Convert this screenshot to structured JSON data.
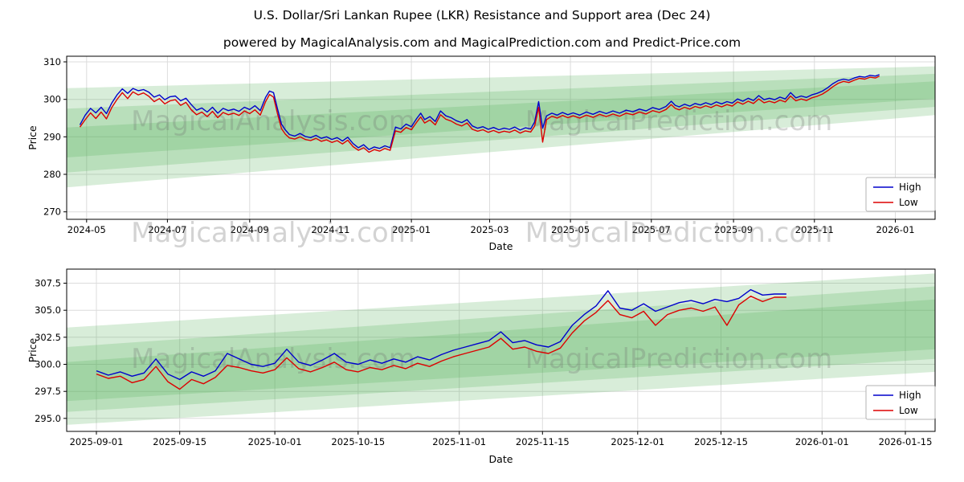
{
  "page": {
    "title": "U.S. Dollar/Sri Lankan Rupee (LKR) Resistance and Support area (Dec 24)",
    "subtitle": "powered by MagicalAnalysis.com and MagicalPrediction.com and Predict-Price.com"
  },
  "watermarks": [
    "MagicalAnalysis.com",
    "MagicalPrediction.com"
  ],
  "colors": {
    "high": "#0000cc",
    "low": "#dd0000",
    "band": "#4caf50",
    "grid": "#dcdcdc"
  },
  "chart_data": [
    {
      "type": "line",
      "title": "",
      "xlabel": "Date",
      "ylabel": "Price",
      "x_unit": "days since 2024-04-26",
      "xlim": [
        -10,
        645
      ],
      "ylim": [
        268,
        311.5
      ],
      "grid": true,
      "legend_position": "lower right",
      "xticks": [
        5,
        66,
        128,
        189,
        250,
        309,
        370,
        431,
        493,
        554,
        615
      ],
      "xticklabels": [
        "2024-05",
        "2024-07",
        "2024-09",
        "2024-11",
        "2025-01",
        "2025-03",
        "2025-05",
        "2025-07",
        "2025-09",
        "2025-11",
        "2026-01"
      ],
      "yticks": [
        270,
        280,
        290,
        300,
        310
      ],
      "yticklabels": [
        "270",
        "280",
        "290",
        "300",
        "310"
      ],
      "band_color": "#4caf50",
      "band_alpha": 0.22,
      "bands": [
        {
          "x": [
            -10,
            645
          ],
          "lower": [
            276.5,
            295.8
          ],
          "upper": [
            303.0,
            308.8
          ]
        },
        {
          "x": [
            -10,
            645
          ],
          "lower": [
            280.5,
            298.0
          ],
          "upper": [
            297.5,
            306.8
          ]
        },
        {
          "x": [
            -10,
            645
          ],
          "lower": [
            284.5,
            300.2
          ],
          "upper": [
            292.5,
            304.8
          ]
        }
      ],
      "x": [
        0,
        4,
        8,
        12,
        16,
        20,
        24,
        28,
        32,
        36,
        40,
        44,
        48,
        52,
        56,
        60,
        64,
        68,
        72,
        76,
        80,
        84,
        88,
        92,
        96,
        100,
        104,
        108,
        112,
        116,
        120,
        124,
        128,
        132,
        136,
        140,
        143,
        146,
        149,
        152,
        155,
        158,
        162,
        166,
        170,
        174,
        178,
        182,
        186,
        190,
        194,
        198,
        202,
        206,
        210,
        214,
        218,
        222,
        226,
        230,
        234,
        238,
        242,
        246,
        250,
        254,
        257,
        260,
        264,
        268,
        272,
        276,
        280,
        284,
        288,
        292,
        296,
        300,
        304,
        308,
        312,
        316,
        320,
        324,
        328,
        332,
        336,
        340,
        343,
        346,
        349,
        352,
        356,
        360,
        364,
        368,
        372,
        377,
        382,
        387,
        392,
        397,
        402,
        407,
        412,
        417,
        422,
        427,
        432,
        437,
        442,
        446,
        449,
        452,
        456,
        460,
        464,
        468,
        472,
        476,
        480,
        484,
        488,
        492,
        496,
        500,
        504,
        508,
        512,
        516,
        520,
        524,
        528,
        532,
        536,
        540,
        544,
        548,
        552,
        556,
        560,
        564,
        568,
        572,
        576,
        580,
        584,
        588,
        592,
        596,
        600,
        603
      ],
      "series": [
        {
          "name": "High",
          "color": "#0000cc",
          "values": [
            293.2,
            295.8,
            297.6,
            296.4,
            297.9,
            296.2,
            299.0,
            301.2,
            302.8,
            301.6,
            302.9,
            302.3,
            302.6,
            301.9,
            300.6,
            301.2,
            299.9,
            300.7,
            300.9,
            299.6,
            300.3,
            298.6,
            297.1,
            297.7,
            296.6,
            297.9,
            296.3,
            297.6,
            297.0,
            297.4,
            296.8,
            297.9,
            297.3,
            298.3,
            297.0,
            300.5,
            302.2,
            301.8,
            297.5,
            293.4,
            291.8,
            290.6,
            290.2,
            290.9,
            290.1,
            289.8,
            290.4,
            289.6,
            290.0,
            289.3,
            289.8,
            288.9,
            289.9,
            288.2,
            287.1,
            287.9,
            286.6,
            287.3,
            286.9,
            287.6,
            287.1,
            292.6,
            292.1,
            293.4,
            292.7,
            294.9,
            296.3,
            294.6,
            295.4,
            294.1,
            296.9,
            295.6,
            295.1,
            294.3,
            293.8,
            294.6,
            292.9,
            292.3,
            292.7,
            292.0,
            292.5,
            291.9,
            292.3,
            292.0,
            292.6,
            291.8,
            292.4,
            292.1,
            294.0,
            299.4,
            292.3,
            295.6,
            296.3,
            295.8,
            296.5,
            295.9,
            296.4,
            295.8,
            296.6,
            296.0,
            296.8,
            296.2,
            296.9,
            296.3,
            297.1,
            296.7,
            297.4,
            296.9,
            297.8,
            297.3,
            298.1,
            299.5,
            298.4,
            298.0,
            298.7,
            298.2,
            298.9,
            298.5,
            299.1,
            298.6,
            299.3,
            298.8,
            299.4,
            299.0,
            300.1,
            299.5,
            300.3,
            299.7,
            301.0,
            299.9,
            300.3,
            299.9,
            300.6,
            300.1,
            301.8,
            300.4,
            300.9,
            300.5,
            301.2,
            301.6,
            302.2,
            303.1,
            304.2,
            305.0,
            305.4,
            305.1,
            305.7,
            306.1,
            305.9,
            306.4,
            306.2,
            306.6
          ]
        },
        {
          "name": "Low",
          "color": "#dd0000",
          "values": [
            292.6,
            294.6,
            296.4,
            294.9,
            296.6,
            294.8,
            297.8,
            300.0,
            301.8,
            300.2,
            302.0,
            301.2,
            301.7,
            300.8,
            299.4,
            300.2,
            298.8,
            299.6,
            299.9,
            298.4,
            299.2,
            297.2,
            295.9,
            296.6,
            295.4,
            296.8,
            295.1,
            296.5,
            295.9,
            296.3,
            295.7,
            296.9,
            296.2,
            297.2,
            295.8,
            299.4,
            301.3,
            300.6,
            296.2,
            292.2,
            290.7,
            289.7,
            289.4,
            290.0,
            289.3,
            289.0,
            289.6,
            288.8,
            289.2,
            288.5,
            289.0,
            288.1,
            289.1,
            287.4,
            286.4,
            287.1,
            285.9,
            286.6,
            286.2,
            286.9,
            286.4,
            291.6,
            291.2,
            292.5,
            291.9,
            293.9,
            295.3,
            293.7,
            294.5,
            293.2,
            295.9,
            294.7,
            294.2,
            293.4,
            292.9,
            293.7,
            292.0,
            291.5,
            291.9,
            291.2,
            291.7,
            291.1,
            291.5,
            291.2,
            291.8,
            291.0,
            291.6,
            291.3,
            292.9,
            297.9,
            288.6,
            294.6,
            295.5,
            295.0,
            295.7,
            295.1,
            295.6,
            295.0,
            295.8,
            295.2,
            296.0,
            295.4,
            296.1,
            295.5,
            296.3,
            295.9,
            296.6,
            296.1,
            297.0,
            296.5,
            297.3,
            298.6,
            297.6,
            297.2,
            297.9,
            297.4,
            298.1,
            297.7,
            298.3,
            297.8,
            298.5,
            298.0,
            298.6,
            298.2,
            299.3,
            298.7,
            299.5,
            298.9,
            300.1,
            299.1,
            299.5,
            299.1,
            299.8,
            299.3,
            300.9,
            299.6,
            300.1,
            299.7,
            300.4,
            300.8,
            301.4,
            302.3,
            303.4,
            304.3,
            304.8,
            304.5,
            305.1,
            305.6,
            305.4,
            305.9,
            305.7,
            306.2
          ]
        }
      ]
    },
    {
      "type": "line",
      "title": "",
      "xlabel": "Date",
      "ylabel": "Price",
      "x_unit": "days since 2025-09-01",
      "xlim": [
        -5,
        141
      ],
      "ylim": [
        293.8,
        308.8
      ],
      "grid": true,
      "legend_position": "lower right",
      "xticks": [
        0,
        14,
        30,
        44,
        61,
        75,
        91,
        105,
        122,
        136
      ],
      "xticklabels": [
        "2025-09-01",
        "2025-09-15",
        "2025-10-01",
        "2025-10-15",
        "2025-11-01",
        "2025-11-15",
        "2025-12-01",
        "2025-12-15",
        "2026-01-01",
        "2026-01-15"
      ],
      "yticks": [
        295.0,
        297.5,
        300.0,
        302.5,
        305.0,
        307.5
      ],
      "yticklabels": [
        "295.0",
        "297.5",
        "300.0",
        "302.5",
        "305.0",
        "307.5"
      ],
      "band_color": "#4caf50",
      "band_alpha": 0.22,
      "bands": [
        {
          "x": [
            -5,
            141
          ],
          "lower": [
            294.4,
            299.3
          ],
          "upper": [
            303.4,
            308.4
          ]
        },
        {
          "x": [
            -5,
            141
          ],
          "lower": [
            295.6,
            300.5
          ],
          "upper": [
            301.6,
            307.2
          ]
        },
        {
          "x": [
            -5,
            141
          ],
          "lower": [
            296.6,
            301.4
          ],
          "upper": [
            300.2,
            306.0
          ]
        }
      ],
      "x": [
        0,
        2,
        4,
        6,
        8,
        10,
        12,
        14,
        16,
        18,
        20,
        22,
        24,
        26,
        28,
        30,
        32,
        34,
        36,
        38,
        40,
        42,
        44,
        46,
        48,
        50,
        52,
        54,
        56,
        58,
        60,
        62,
        64,
        66,
        68,
        70,
        72,
        74,
        76,
        78,
        80,
        82,
        84,
        86,
        88,
        90,
        92,
        94,
        96,
        98,
        100,
        102,
        104,
        106,
        108,
        110,
        112,
        114,
        116
      ],
      "series": [
        {
          "name": "High",
          "color": "#0000cc",
          "values": [
            299.4,
            299.0,
            299.3,
            298.9,
            299.2,
            300.5,
            299.1,
            298.6,
            299.3,
            298.9,
            299.4,
            301.0,
            300.5,
            300.0,
            299.8,
            300.1,
            301.4,
            300.2,
            299.9,
            300.4,
            301.0,
            300.2,
            300.0,
            300.4,
            300.1,
            300.5,
            300.2,
            300.7,
            300.4,
            300.9,
            301.3,
            301.6,
            301.9,
            302.2,
            303.0,
            302.0,
            302.2,
            301.8,
            301.6,
            302.1,
            303.6,
            304.6,
            305.4,
            306.8,
            305.2,
            305.0,
            305.6,
            304.9,
            305.3,
            305.7,
            305.9,
            305.6,
            306.0,
            305.8,
            306.1,
            306.9,
            306.4,
            306.5,
            306.5
          ]
        },
        {
          "name": "Low",
          "color": "#dd0000",
          "values": [
            299.1,
            298.7,
            298.9,
            298.3,
            298.6,
            299.8,
            298.4,
            297.7,
            298.6,
            298.2,
            298.8,
            299.9,
            299.7,
            299.4,
            299.2,
            299.5,
            300.6,
            299.6,
            299.3,
            299.7,
            300.2,
            299.5,
            299.3,
            299.7,
            299.5,
            299.9,
            299.6,
            300.1,
            299.8,
            300.3,
            300.7,
            301.0,
            301.3,
            301.6,
            302.4,
            301.4,
            301.6,
            301.2,
            301.0,
            301.5,
            302.9,
            304.0,
            304.8,
            305.9,
            304.6,
            304.3,
            304.9,
            303.6,
            304.6,
            305.0,
            305.2,
            304.9,
            305.3,
            303.6,
            305.5,
            306.3,
            305.8,
            306.2,
            306.2
          ]
        }
      ]
    }
  ]
}
